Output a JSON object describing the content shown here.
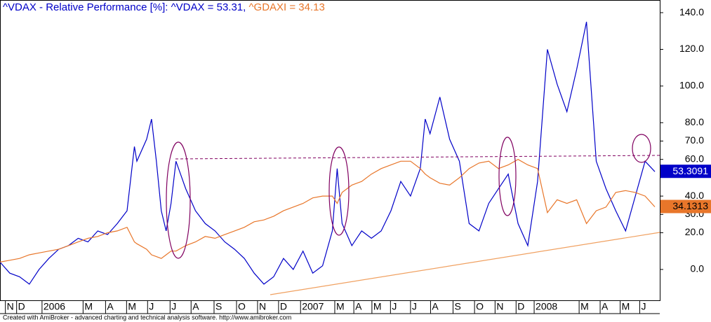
{
  "chart_data": {
    "type": "line",
    "title_parts": [
      "^VDAX - Relative Performance [%]: ^VDAX = 53.31, ",
      "^GDAXI = 34.13"
    ],
    "footer": "Created with AmiBroker - advanced charting and technical analysis software. http://www.amibroker.com",
    "x": [
      0,
      2,
      4,
      6,
      8,
      10,
      12,
      14,
      16,
      18,
      20,
      22,
      24,
      26,
      27.5,
      28,
      30,
      31,
      32,
      33,
      34,
      35,
      36,
      38,
      40,
      42,
      44,
      46,
      48,
      50,
      52,
      54,
      56,
      58,
      60,
      62,
      64,
      66,
      68,
      69,
      70,
      72,
      74,
      76,
      78,
      80,
      82,
      84,
      86,
      87,
      88,
      90,
      92,
      94,
      96,
      98,
      100,
      102,
      104,
      106,
      108,
      110,
      112,
      114,
      116,
      118,
      120,
      122,
      124,
      126,
      128,
      130,
      132,
      134
    ],
    "series": [
      {
        "color": "#0000c8",
        "last_label": "53.3091",
        "values": [
          4,
          -2,
          -4,
          -8,
          0,
          6,
          11,
          13,
          17,
          15,
          21,
          19,
          25,
          32,
          67,
          59,
          71,
          82,
          59,
          32,
          21,
          36,
          59,
          44,
          32,
          25,
          21,
          15,
          11,
          6,
          -2,
          -8,
          -4,
          6,
          0,
          10,
          -2,
          2,
          21,
          55,
          25,
          13,
          21,
          17,
          21,
          32,
          48,
          40,
          55,
          82,
          74,
          94,
          71,
          59,
          25,
          21,
          36,
          44,
          52,
          25,
          13,
          48,
          120,
          101,
          86,
          109,
          135,
          59,
          44,
          32,
          21,
          40,
          59,
          53.3091
        ]
      },
      {
        "color": "#e8762a",
        "last_label": "34.1313",
        "values": [
          4,
          5,
          6,
          8,
          9,
          10,
          11,
          13,
          15,
          17,
          18,
          20,
          21,
          23,
          15,
          14,
          11,
          8,
          7,
          6,
          8,
          10,
          10,
          13,
          15,
          18,
          17,
          19,
          21,
          23,
          26,
          27,
          29,
          32,
          34,
          36,
          39,
          40,
          40,
          36,
          42,
          46,
          48,
          52,
          55,
          57,
          59,
          59,
          55,
          52,
          50,
          47,
          46,
          50,
          55,
          58,
          59,
          55,
          57,
          60,
          57,
          55,
          31,
          38,
          36,
          38,
          25,
          32,
          34,
          42,
          43,
          42,
          40,
          34.1313
        ]
      }
    ],
    "xlim": [
      0,
      135
    ],
    "xticks": [
      {
        "value": 1.1,
        "label": "N"
      },
      {
        "value": 3.4,
        "label": "D"
      },
      {
        "value": 8.6,
        "label": "2006"
      },
      {
        "value": 17,
        "label": "M"
      },
      {
        "value": 21.6,
        "label": "A"
      },
      {
        "value": 25.9,
        "label": "M"
      },
      {
        "value": 30.2,
        "label": "J"
      },
      {
        "value": 34.8,
        "label": "J"
      },
      {
        "value": 39.1,
        "label": "A"
      },
      {
        "value": 43.8,
        "label": "S"
      },
      {
        "value": 48.4,
        "label": "O"
      },
      {
        "value": 52.7,
        "label": "N"
      },
      {
        "value": 57,
        "label": "D"
      },
      {
        "value": 61.5,
        "label": "2007"
      },
      {
        "value": 68.5,
        "label": "M"
      },
      {
        "value": 72.4,
        "label": "A"
      },
      {
        "value": 76.1,
        "label": "M"
      },
      {
        "value": 79.9,
        "label": "J"
      },
      {
        "value": 84,
        "label": "J"
      },
      {
        "value": 88.1,
        "label": "A"
      },
      {
        "value": 92.7,
        "label": "S"
      },
      {
        "value": 97.1,
        "label": "O"
      },
      {
        "value": 101.3,
        "label": "N"
      },
      {
        "value": 105.6,
        "label": "D"
      },
      {
        "value": 109.3,
        "label": "2008"
      },
      {
        "value": 118.5,
        "label": "M"
      },
      {
        "value": 122.8,
        "label": "A"
      },
      {
        "value": 126.9,
        "label": "M"
      },
      {
        "value": 130.9,
        "label": "J"
      }
    ],
    "ylim": [
      -17.2,
      146.9
    ],
    "yticks": [
      {
        "value": 0,
        "label": "0.0"
      },
      {
        "value": 20,
        "label": "20.0"
      },
      {
        "value": 30,
        "label": "30.0"
      },
      {
        "value": 40,
        "label": "40.0"
      },
      {
        "value": 60,
        "label": "60.0"
      },
      {
        "value": 70,
        "label": "70.0"
      },
      {
        "value": 80,
        "label": "80.0"
      },
      {
        "value": 100,
        "label": "100.0"
      },
      {
        "value": 120,
        "label": "120.0"
      },
      {
        "value": 140,
        "label": "140.0"
      }
    ]
  }
}
